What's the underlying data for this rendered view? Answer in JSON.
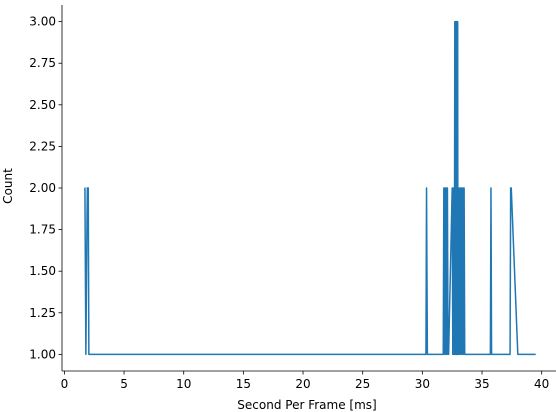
{
  "chart_data": {
    "type": "line",
    "title": "",
    "xlabel": "Second Per Frame [ms]",
    "ylabel": "Count",
    "xlim": [
      -0.2,
      41.2
    ],
    "ylim": [
      0.9,
      3.1
    ],
    "xticks": [
      0,
      5,
      10,
      15,
      20,
      25,
      30,
      35,
      40
    ],
    "xtick_labels": [
      "0",
      "5",
      "10",
      "15",
      "20",
      "25",
      "30",
      "35",
      "40"
    ],
    "yticks": [
      1.0,
      1.25,
      1.5,
      1.75,
      2.0,
      2.25,
      2.5,
      2.75,
      3.0
    ],
    "ytick_labels": [
      "1.00",
      "1.25",
      "1.50",
      "1.75",
      "2.00",
      "2.25",
      "2.50",
      "2.75",
      "3.00"
    ],
    "grid": false,
    "legend": false,
    "color": "#1f77b4",
    "series": [
      {
        "x": [
          1.7,
          1.72,
          1.8,
          1.92,
          2.0,
          2.05,
          30.3,
          30.35,
          30.42,
          31.75,
          31.8,
          31.85,
          31.9,
          31.95,
          32.0,
          32.05,
          32.1,
          32.15,
          32.2,
          32.5,
          32.55,
          32.6,
          32.65,
          32.7,
          32.72,
          32.74,
          32.76,
          32.78,
          32.8,
          32.82,
          32.84,
          32.86,
          32.88,
          32.9,
          32.92,
          32.94,
          32.96,
          32.98,
          33.0,
          33.05,
          33.1,
          33.15,
          33.2,
          33.25,
          33.3,
          33.35,
          33.4,
          33.45,
          33.5,
          33.55,
          33.6,
          35.7,
          35.75,
          35.8,
          37.35,
          37.4,
          37.45,
          38.0,
          39.5
        ],
        "y": [
          2,
          2,
          1,
          2,
          2,
          1,
          1,
          2,
          1,
          1,
          2,
          1,
          2,
          1,
          2,
          1,
          2,
          1,
          1,
          2,
          1,
          2,
          1,
          2,
          3,
          1,
          3,
          1,
          3,
          1,
          3,
          1,
          3,
          1,
          3,
          1,
          3,
          1,
          2,
          1,
          2,
          1,
          2,
          1,
          2,
          1,
          2,
          1,
          2,
          1,
          1,
          1,
          2,
          1,
          1,
          2,
          2,
          1,
          1
        ]
      }
    ]
  }
}
